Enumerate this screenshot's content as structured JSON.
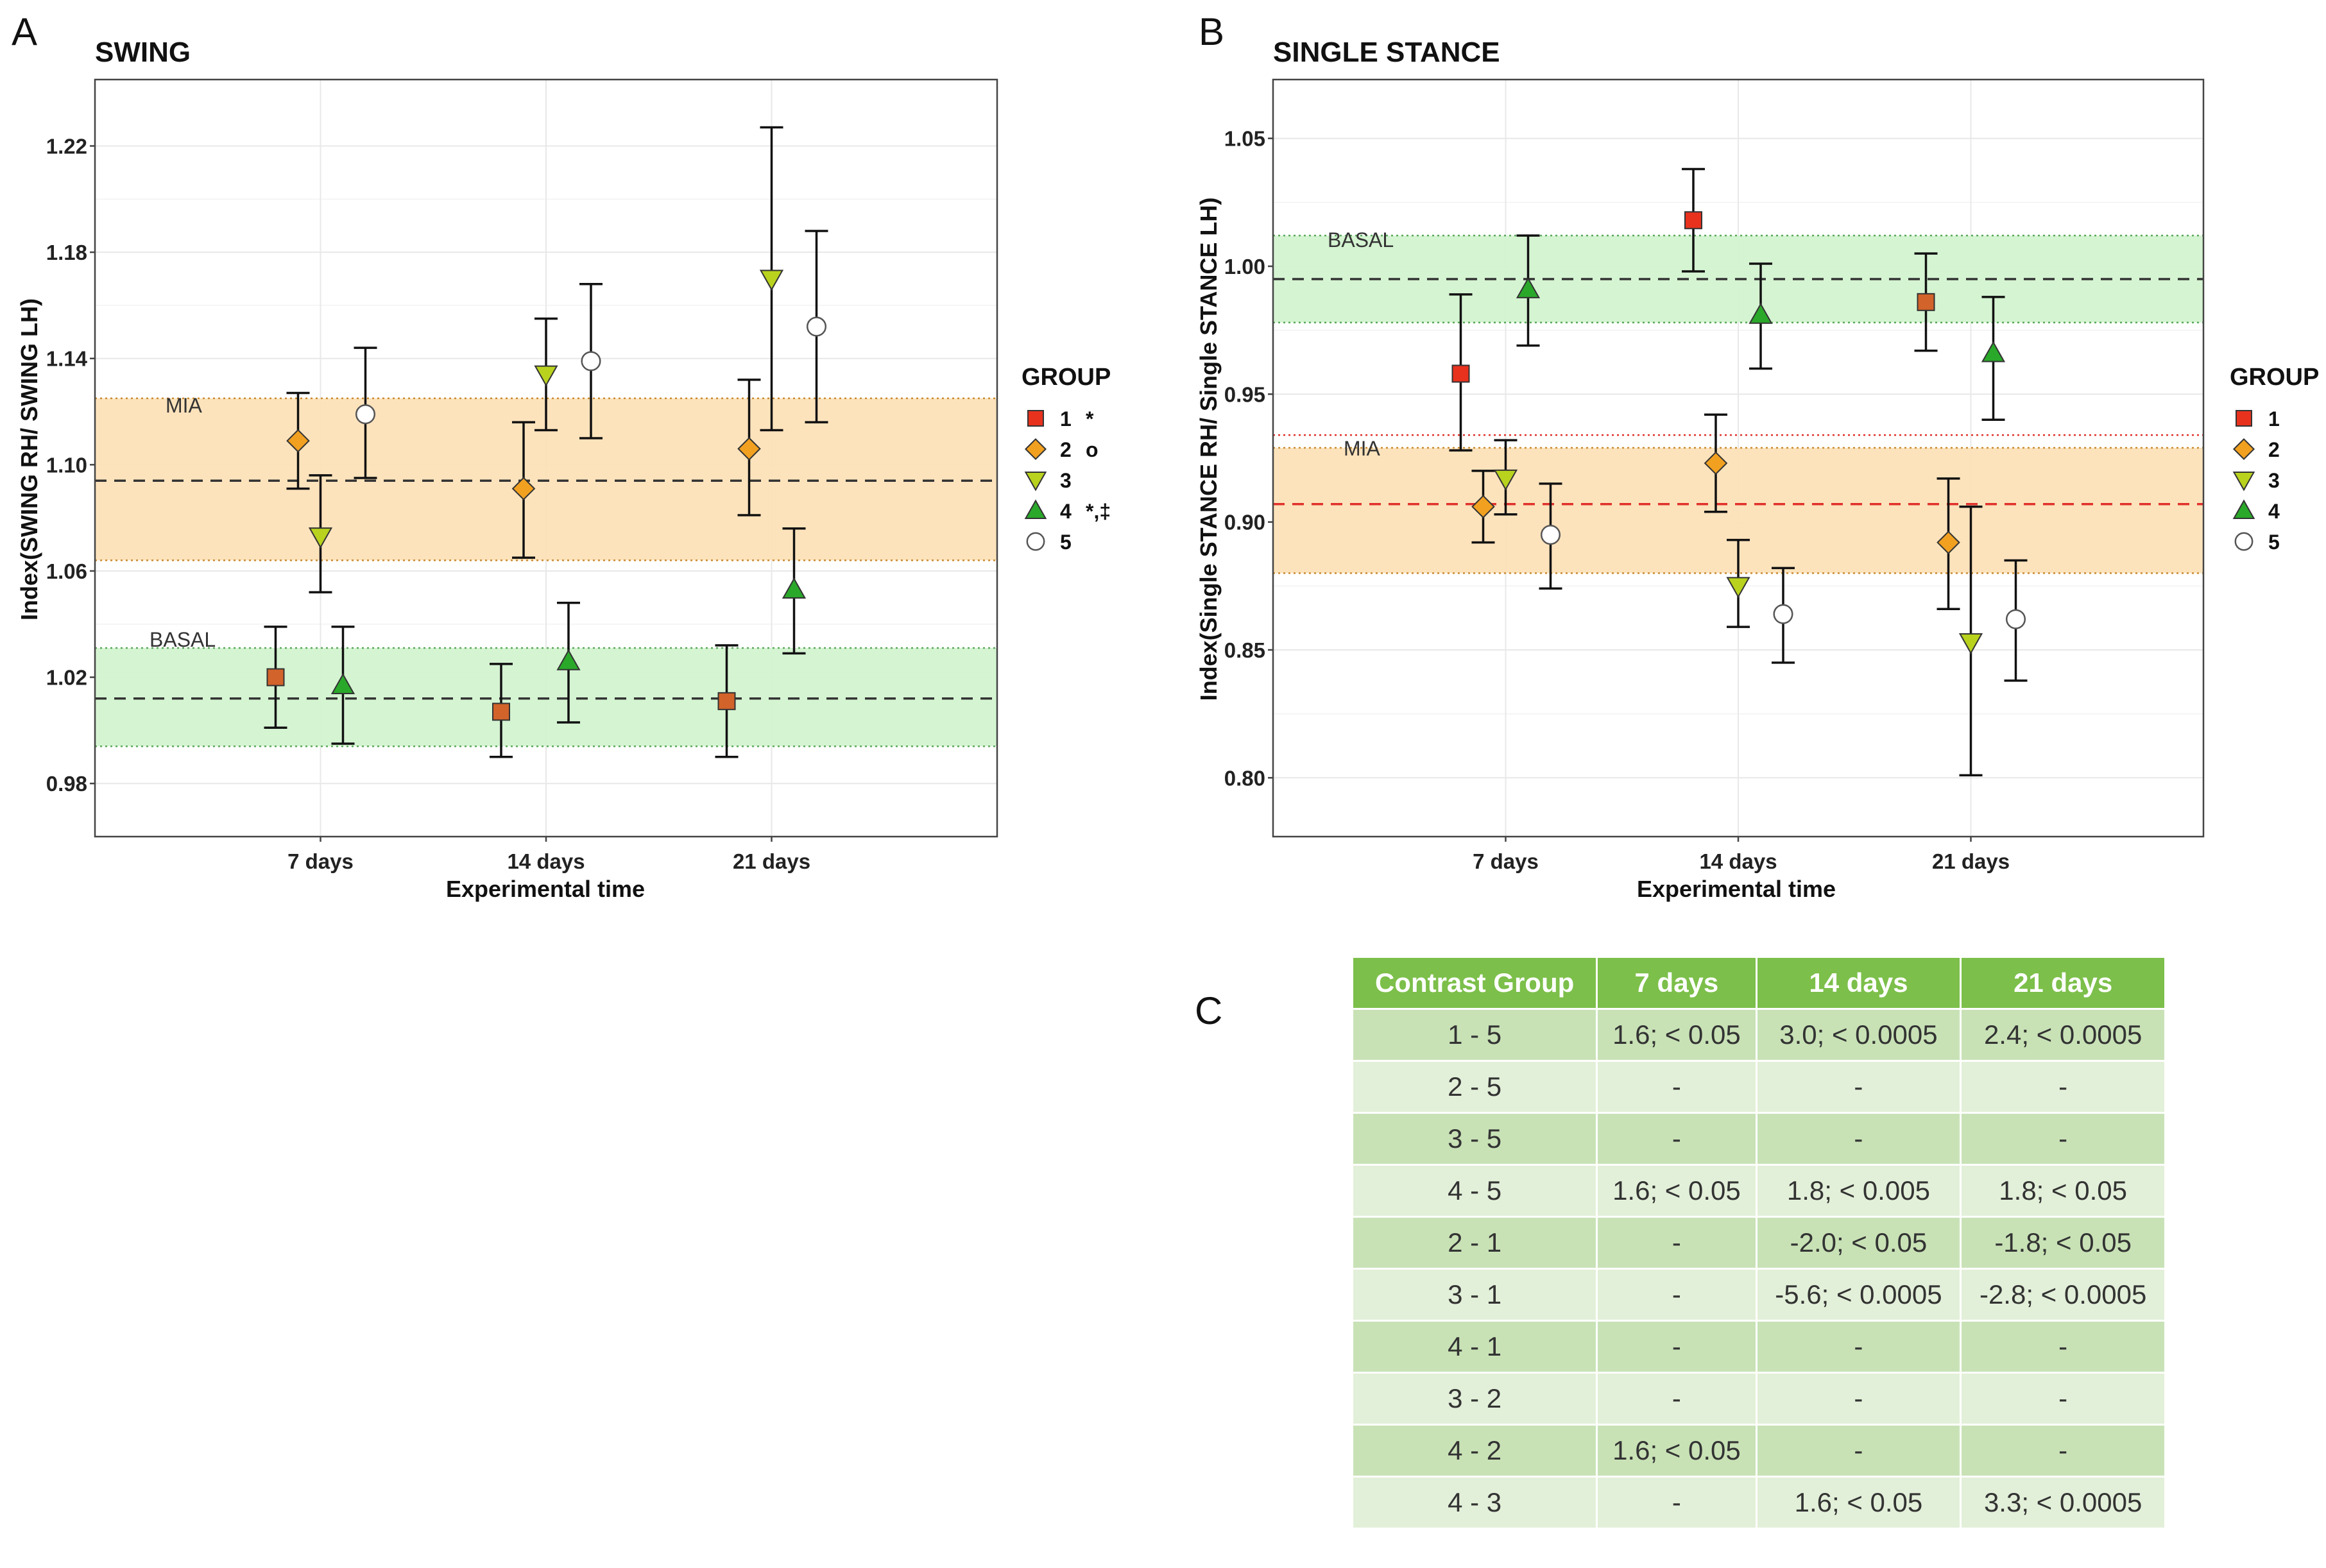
{
  "panel_labels": {
    "a": "A",
    "b": "B",
    "c": "C"
  },
  "legend_title": "GROUP",
  "groups": [
    {
      "id": "1",
      "label": "1",
      "shape": "square",
      "fill": "#e8321e",
      "markA": "*",
      "markB": ""
    },
    {
      "id": "2",
      "label": "2",
      "shape": "diamond",
      "fill": "#f1a020",
      "markA": "o",
      "markB": ""
    },
    {
      "id": "3",
      "label": "3",
      "shape": "triangle-down",
      "fill": "#b9d21e",
      "markA": "",
      "markB": ""
    },
    {
      "id": "4",
      "label": "4",
      "shape": "triangle-up",
      "fill": "#2aa82a",
      "markA": "*,‡",
      "markB": ""
    },
    {
      "id": "5",
      "label": "5",
      "shape": "circle",
      "fill": "#ffffff",
      "markA": "",
      "markB": ""
    }
  ],
  "colors": {
    "mia_band": "#fde2b8",
    "basal_band": "#d3f3d0",
    "band_edge_orange": "#c98a30",
    "band_edge_green": "#5aa85a",
    "mia_line_red": "#e0302a"
  },
  "chart_data": [
    {
      "type": "scatter",
      "title": "SWING",
      "xlabel": "Experimental time",
      "ylabel": "Index(SWING RH/ SWING LH)",
      "categories": [
        "7 days",
        "14 days",
        "21 days"
      ],
      "ylim": [
        0.96,
        1.245
      ],
      "yticks": [
        0.98,
        1.02,
        1.06,
        1.1,
        1.14,
        1.18,
        1.22
      ],
      "ytick_labels": [
        "0.98",
        "1.02",
        "1.06",
        "1.10",
        "1.14",
        "1.18",
        "1.22"
      ],
      "bands": [
        {
          "label": "MIA",
          "low": 1.064,
          "high": 1.125,
          "mean": 1.094,
          "color": "orange"
        },
        {
          "label": "BASAL",
          "low": 0.994,
          "high": 1.031,
          "mean": 1.012,
          "color": "green"
        }
      ],
      "series": [
        {
          "group": "1",
          "values": [
            1.02,
            1.007,
            1.011
          ],
          "lower": [
            1.001,
            0.99,
            0.99
          ],
          "upper": [
            1.039,
            1.025,
            1.032
          ]
        },
        {
          "group": "2",
          "values": [
            1.109,
            1.091,
            1.106
          ],
          "lower": [
            1.091,
            1.065,
            1.081
          ],
          "upper": [
            1.127,
            1.116,
            1.132
          ]
        },
        {
          "group": "3",
          "values": [
            1.073,
            1.134,
            1.17
          ],
          "lower": [
            1.052,
            1.113,
            1.113
          ],
          "upper": [
            1.096,
            1.155,
            1.227
          ]
        },
        {
          "group": "4",
          "values": [
            1.017,
            1.026,
            1.053
          ],
          "lower": [
            0.995,
            1.003,
            1.029
          ],
          "upper": [
            1.039,
            1.048,
            1.076
          ]
        },
        {
          "group": "5",
          "values": [
            1.119,
            1.139,
            1.152
          ],
          "lower": [
            1.095,
            1.11,
            1.116
          ],
          "upper": [
            1.144,
            1.168,
            1.188
          ]
        }
      ]
    },
    {
      "type": "scatter",
      "title": "SINGLE STANCE",
      "xlabel": "Experimental time",
      "ylabel": "Index(Single STANCE RH/ Single STANCE LH)",
      "categories": [
        "7 days",
        "14 days",
        "21 days"
      ],
      "ylim": [
        0.777,
        1.073
      ],
      "yticks": [
        0.8,
        0.85,
        0.9,
        0.95,
        1.0,
        1.05
      ],
      "ytick_labels": [
        "0.80",
        "0.85",
        "0.90",
        "0.95",
        "1.00",
        "1.05"
      ],
      "bands": [
        {
          "label": "MIA",
          "low": 0.88,
          "high": 0.929,
          "mean": 0.907,
          "color": "orange",
          "upper_line": 0.934
        },
        {
          "label": "BASAL",
          "low": 0.978,
          "high": 1.012,
          "mean": 0.995,
          "color": "green"
        }
      ],
      "series": [
        {
          "group": "1",
          "values": [
            0.958,
            1.018,
            0.986
          ],
          "lower": [
            0.928,
            0.998,
            0.967
          ],
          "upper": [
            0.989,
            1.038,
            1.005
          ]
        },
        {
          "group": "2",
          "values": [
            0.906,
            0.923,
            0.892
          ],
          "lower": [
            0.892,
            0.904,
            0.866
          ],
          "upper": [
            0.92,
            0.942,
            0.917
          ]
        },
        {
          "group": "3",
          "values": [
            0.917,
            0.875,
            0.853
          ],
          "lower": [
            0.903,
            0.859,
            0.801
          ],
          "upper": [
            0.932,
            0.893,
            0.906
          ]
        },
        {
          "group": "4",
          "values": [
            0.991,
            0.981,
            0.966
          ],
          "lower": [
            0.969,
            0.96,
            0.94
          ],
          "upper": [
            1.012,
            1.001,
            0.988
          ]
        },
        {
          "group": "5",
          "values": [
            0.895,
            0.864,
            0.862
          ],
          "lower": [
            0.874,
            0.845,
            0.838
          ],
          "upper": [
            0.915,
            0.882,
            0.885
          ]
        }
      ]
    }
  ],
  "table": {
    "headers": [
      "Contrast Group",
      "7 days",
      "14 days",
      "21 days"
    ],
    "rows": [
      [
        "1 - 5",
        "1.6; < 0.05",
        "3.0; < 0.0005",
        "2.4; < 0.0005"
      ],
      [
        "2 - 5",
        "-",
        "-",
        "-"
      ],
      [
        "3 - 5",
        "-",
        "-",
        "-"
      ],
      [
        "4 - 5",
        "1.6; < 0.05",
        "1.8; < 0.005",
        "1.8; < 0.05"
      ],
      [
        "2 - 1",
        "-",
        "-2.0; < 0.05",
        "-1.8; < 0.05"
      ],
      [
        "3 - 1",
        "-",
        "-5.6; < 0.0005",
        "-2.8; < 0.0005"
      ],
      [
        "4 - 1",
        "-",
        "-",
        "-"
      ],
      [
        "3 - 2",
        "-",
        "-",
        "-"
      ],
      [
        "4 - 2",
        "1.6; < 0.05",
        "-",
        "-"
      ],
      [
        "4 - 3",
        "-",
        "1.6; < 0.05",
        "3.3; < 0.0005"
      ]
    ]
  }
}
